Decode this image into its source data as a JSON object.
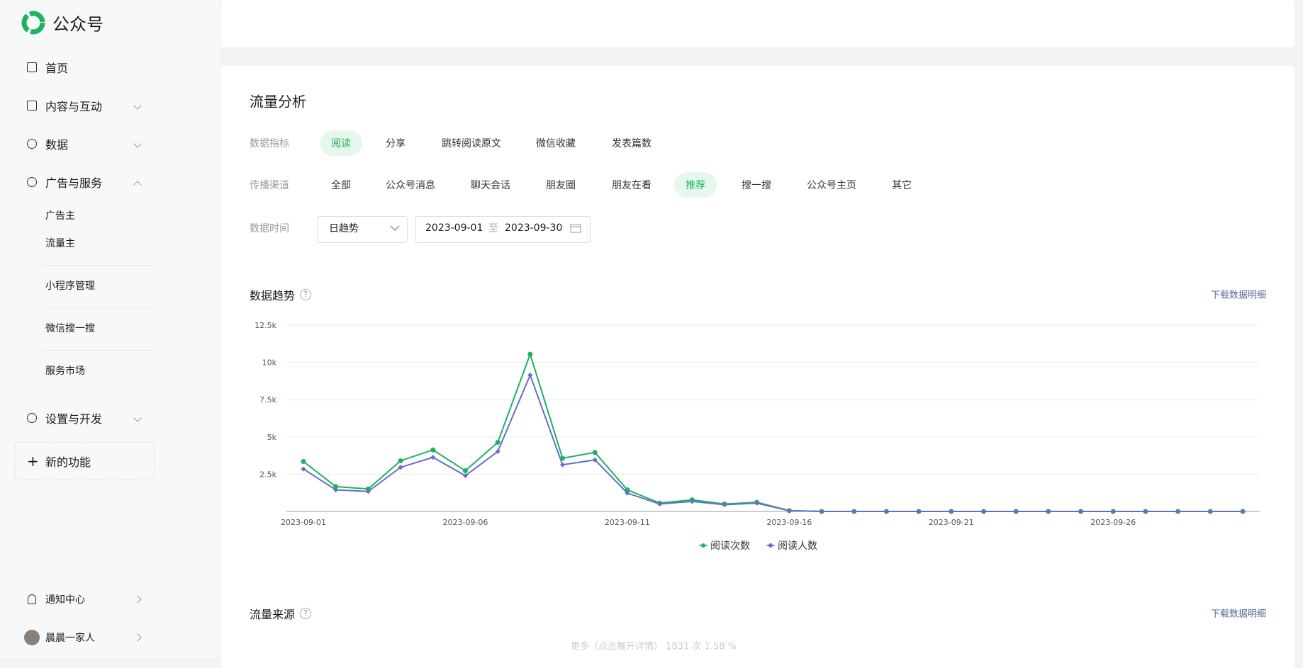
{
  "sidebar": {
    "brand": "公众号",
    "nav": [
      "首页",
      "内容与互动",
      "数据",
      "广告与服务"
    ],
    "sub": [
      "广告主",
      "流量主",
      "小程序管理",
      "微信搜一搜",
      "服务市场"
    ],
    "settings": "设置与开发",
    "new_feature": "新的功能",
    "notify": "通知中心",
    "user": "晨晨一家人"
  },
  "analysis": {
    "title": "流量分析",
    "metric_label": "数据指标",
    "metrics": [
      "阅读",
      "分享",
      "跳转阅读原文",
      "微信收藏",
      "发表篇数"
    ],
    "selected_metric": 0,
    "channel_label": "传播渠道",
    "channels": [
      "全部",
      "公众号消息",
      "聊天会话",
      "朋友圈",
      "朋友在看",
      "推荐",
      "搜一搜",
      "公众号主页",
      "其它"
    ],
    "selected_channel": 5,
    "time_label": "数据时间",
    "granularity": "日趋势",
    "start": "2023-09-01",
    "to": "至",
    "end": "2023-09-30"
  },
  "trend": {
    "title": "数据趋势",
    "download": "下载数据明细"
  },
  "chart_data": {
    "type": "line",
    "categories": [
      "2023-09-01",
      null,
      null,
      null,
      null,
      "2023-09-06",
      null,
      null,
      null,
      null,
      "2023-09-11",
      null,
      null,
      null,
      null,
      "2023-09-16",
      null,
      null,
      null,
      null,
      "2023-09-21",
      null,
      null,
      null,
      null,
      "2023-09-26",
      null,
      null,
      null,
      null
    ],
    "series": [
      {
        "name": "阅读次数",
        "color": "#1bb35e",
        "values": [
          3350,
          1670,
          1510,
          3400,
          4130,
          2730,
          4630,
          10550,
          3570,
          3960,
          1450,
          560,
          780,
          500,
          610,
          60,
          0,
          0,
          0,
          0,
          0,
          0,
          0,
          0,
          0,
          0,
          0,
          0,
          0,
          0
        ]
      },
      {
        "name": "阅读人数",
        "color": "#6470c8",
        "values": [
          2850,
          1450,
          1340,
          2960,
          3630,
          2400,
          4020,
          9150,
          3130,
          3460,
          1230,
          500,
          670,
          450,
          560,
          50,
          0,
          0,
          0,
          0,
          0,
          0,
          0,
          0,
          0,
          0,
          0,
          0,
          0,
          0
        ]
      }
    ],
    "ylim": [
      0,
      12500
    ],
    "yticks": [
      {
        "value": 2500,
        "label": "2.5k"
      },
      {
        "value": 5000,
        "label": "5k"
      },
      {
        "value": 7500,
        "label": "7.5k"
      },
      {
        "value": 10000,
        "label": "10k"
      },
      {
        "value": 12500,
        "label": "12.5k"
      }
    ],
    "grid": true,
    "legend": "bottom"
  },
  "source": {
    "title": "流量来源",
    "download": "下载数据明细",
    "note": "更多（点击展开详情） 1831 次 1.58 %"
  }
}
